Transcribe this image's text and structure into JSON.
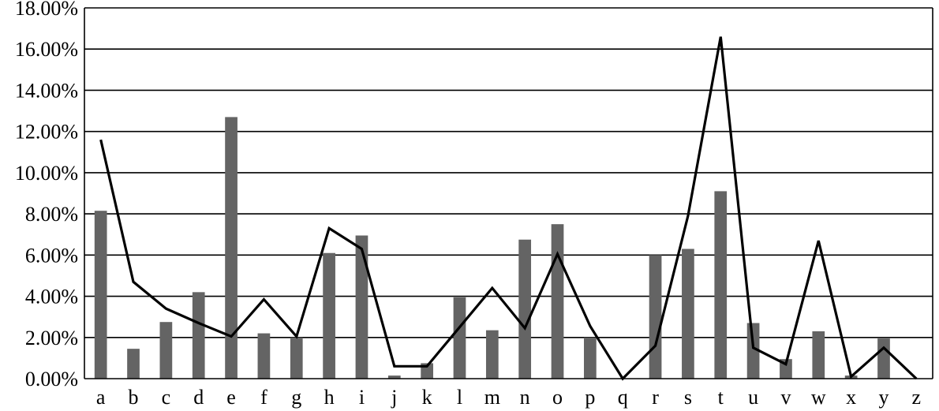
{
  "chart_data": {
    "type": "bar",
    "categories": [
      "a",
      "b",
      "c",
      "d",
      "e",
      "f",
      "g",
      "h",
      "i",
      "j",
      "k",
      "l",
      "m",
      "n",
      "o",
      "p",
      "q",
      "r",
      "s",
      "t",
      "u",
      "v",
      "w",
      "x",
      "y",
      "z"
    ],
    "series": [
      {
        "type": "bar",
        "values": [
          8.15,
          1.45,
          2.75,
          4.2,
          12.7,
          2.2,
          2.0,
          6.1,
          6.95,
          0.15,
          0.75,
          3.95,
          2.35,
          6.75,
          7.5,
          2.0,
          0.0,
          6.0,
          6.3,
          9.1,
          2.7,
          0.95,
          2.3,
          0.15,
          1.95,
          0.0
        ]
      },
      {
        "type": "line",
        "values": [
          11.6,
          4.7,
          3.4,
          2.7,
          2.05,
          3.85,
          2.05,
          7.3,
          6.3,
          0.6,
          0.6,
          2.5,
          4.4,
          2.45,
          6.05,
          2.55,
          0.0,
          1.6,
          7.9,
          16.6,
          1.5,
          0.7,
          6.7,
          0.1,
          1.5,
          0.0
        ]
      }
    ],
    "y_ticks": [
      "0.00%",
      "2.00%",
      "4.00%",
      "6.00%",
      "8.00%",
      "10.00%",
      "12.00%",
      "14.00%",
      "16.00%",
      "18.00%"
    ],
    "ylim": [
      0,
      18
    ],
    "grid": true,
    "colors": {
      "bar": "#646464",
      "line": "#000000",
      "grid": "#000000"
    }
  }
}
